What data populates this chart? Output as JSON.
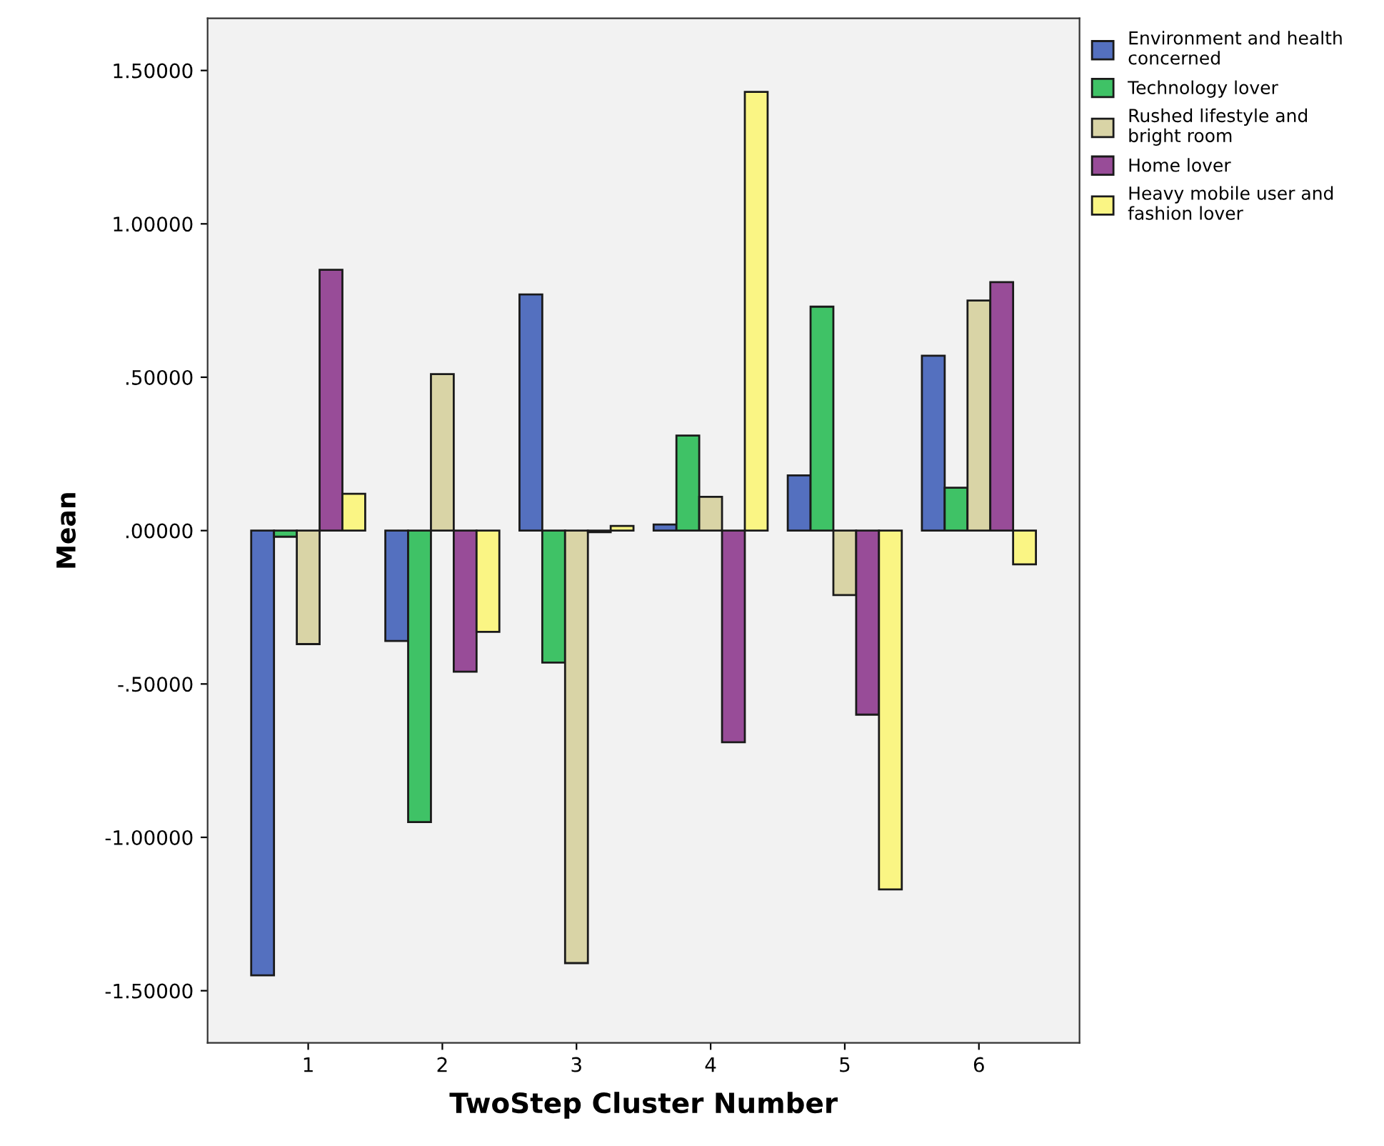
{
  "chart_data": {
    "type": "bar",
    "xlabel": "TwoStep Cluster Number",
    "ylabel": "Mean",
    "categories": [
      "1",
      "2",
      "3",
      "4",
      "5",
      "6"
    ],
    "series": [
      {
        "name": "Environment and health concerned",
        "color": "#5470bf",
        "values": [
          -1.45,
          -0.36,
          0.77,
          0.02,
          0.18,
          0.57
        ]
      },
      {
        "name": "Technology lover",
        "color": "#3fc266",
        "values": [
          -0.02,
          -0.95,
          -0.43,
          0.31,
          0.73,
          0.14
        ]
      },
      {
        "name": "Rushed lifestyle and bright room",
        "color": "#d9d4a6",
        "values": [
          -0.37,
          0.51,
          -1.41,
          0.11,
          -0.21,
          0.75
        ]
      },
      {
        "name": "Home lover",
        "color": "#984c98",
        "values": [
          0.85,
          -0.46,
          -0.005,
          -0.69,
          -0.6,
          0.81
        ]
      },
      {
        "name": "Heavy mobile user and fashion lover",
        "color": "#faf584",
        "values": [
          0.12,
          -0.33,
          0.015,
          1.43,
          -1.17,
          -0.11
        ]
      }
    ],
    "ylim": [
      -1.67,
      1.67
    ],
    "yticks": [
      {
        "value": -1.5,
        "label": "-1.50000"
      },
      {
        "value": -1.0,
        "label": "-1.00000"
      },
      {
        "value": -0.5,
        "label": "-.50000"
      },
      {
        "value": 0,
        "label": ".00000"
      },
      {
        "value": 0.5,
        "label": ".50000"
      },
      {
        "value": 1.0,
        "label": "1.00000"
      },
      {
        "value": 1.5,
        "label": "1.50000"
      }
    ],
    "grid": false,
    "legend": "right"
  }
}
